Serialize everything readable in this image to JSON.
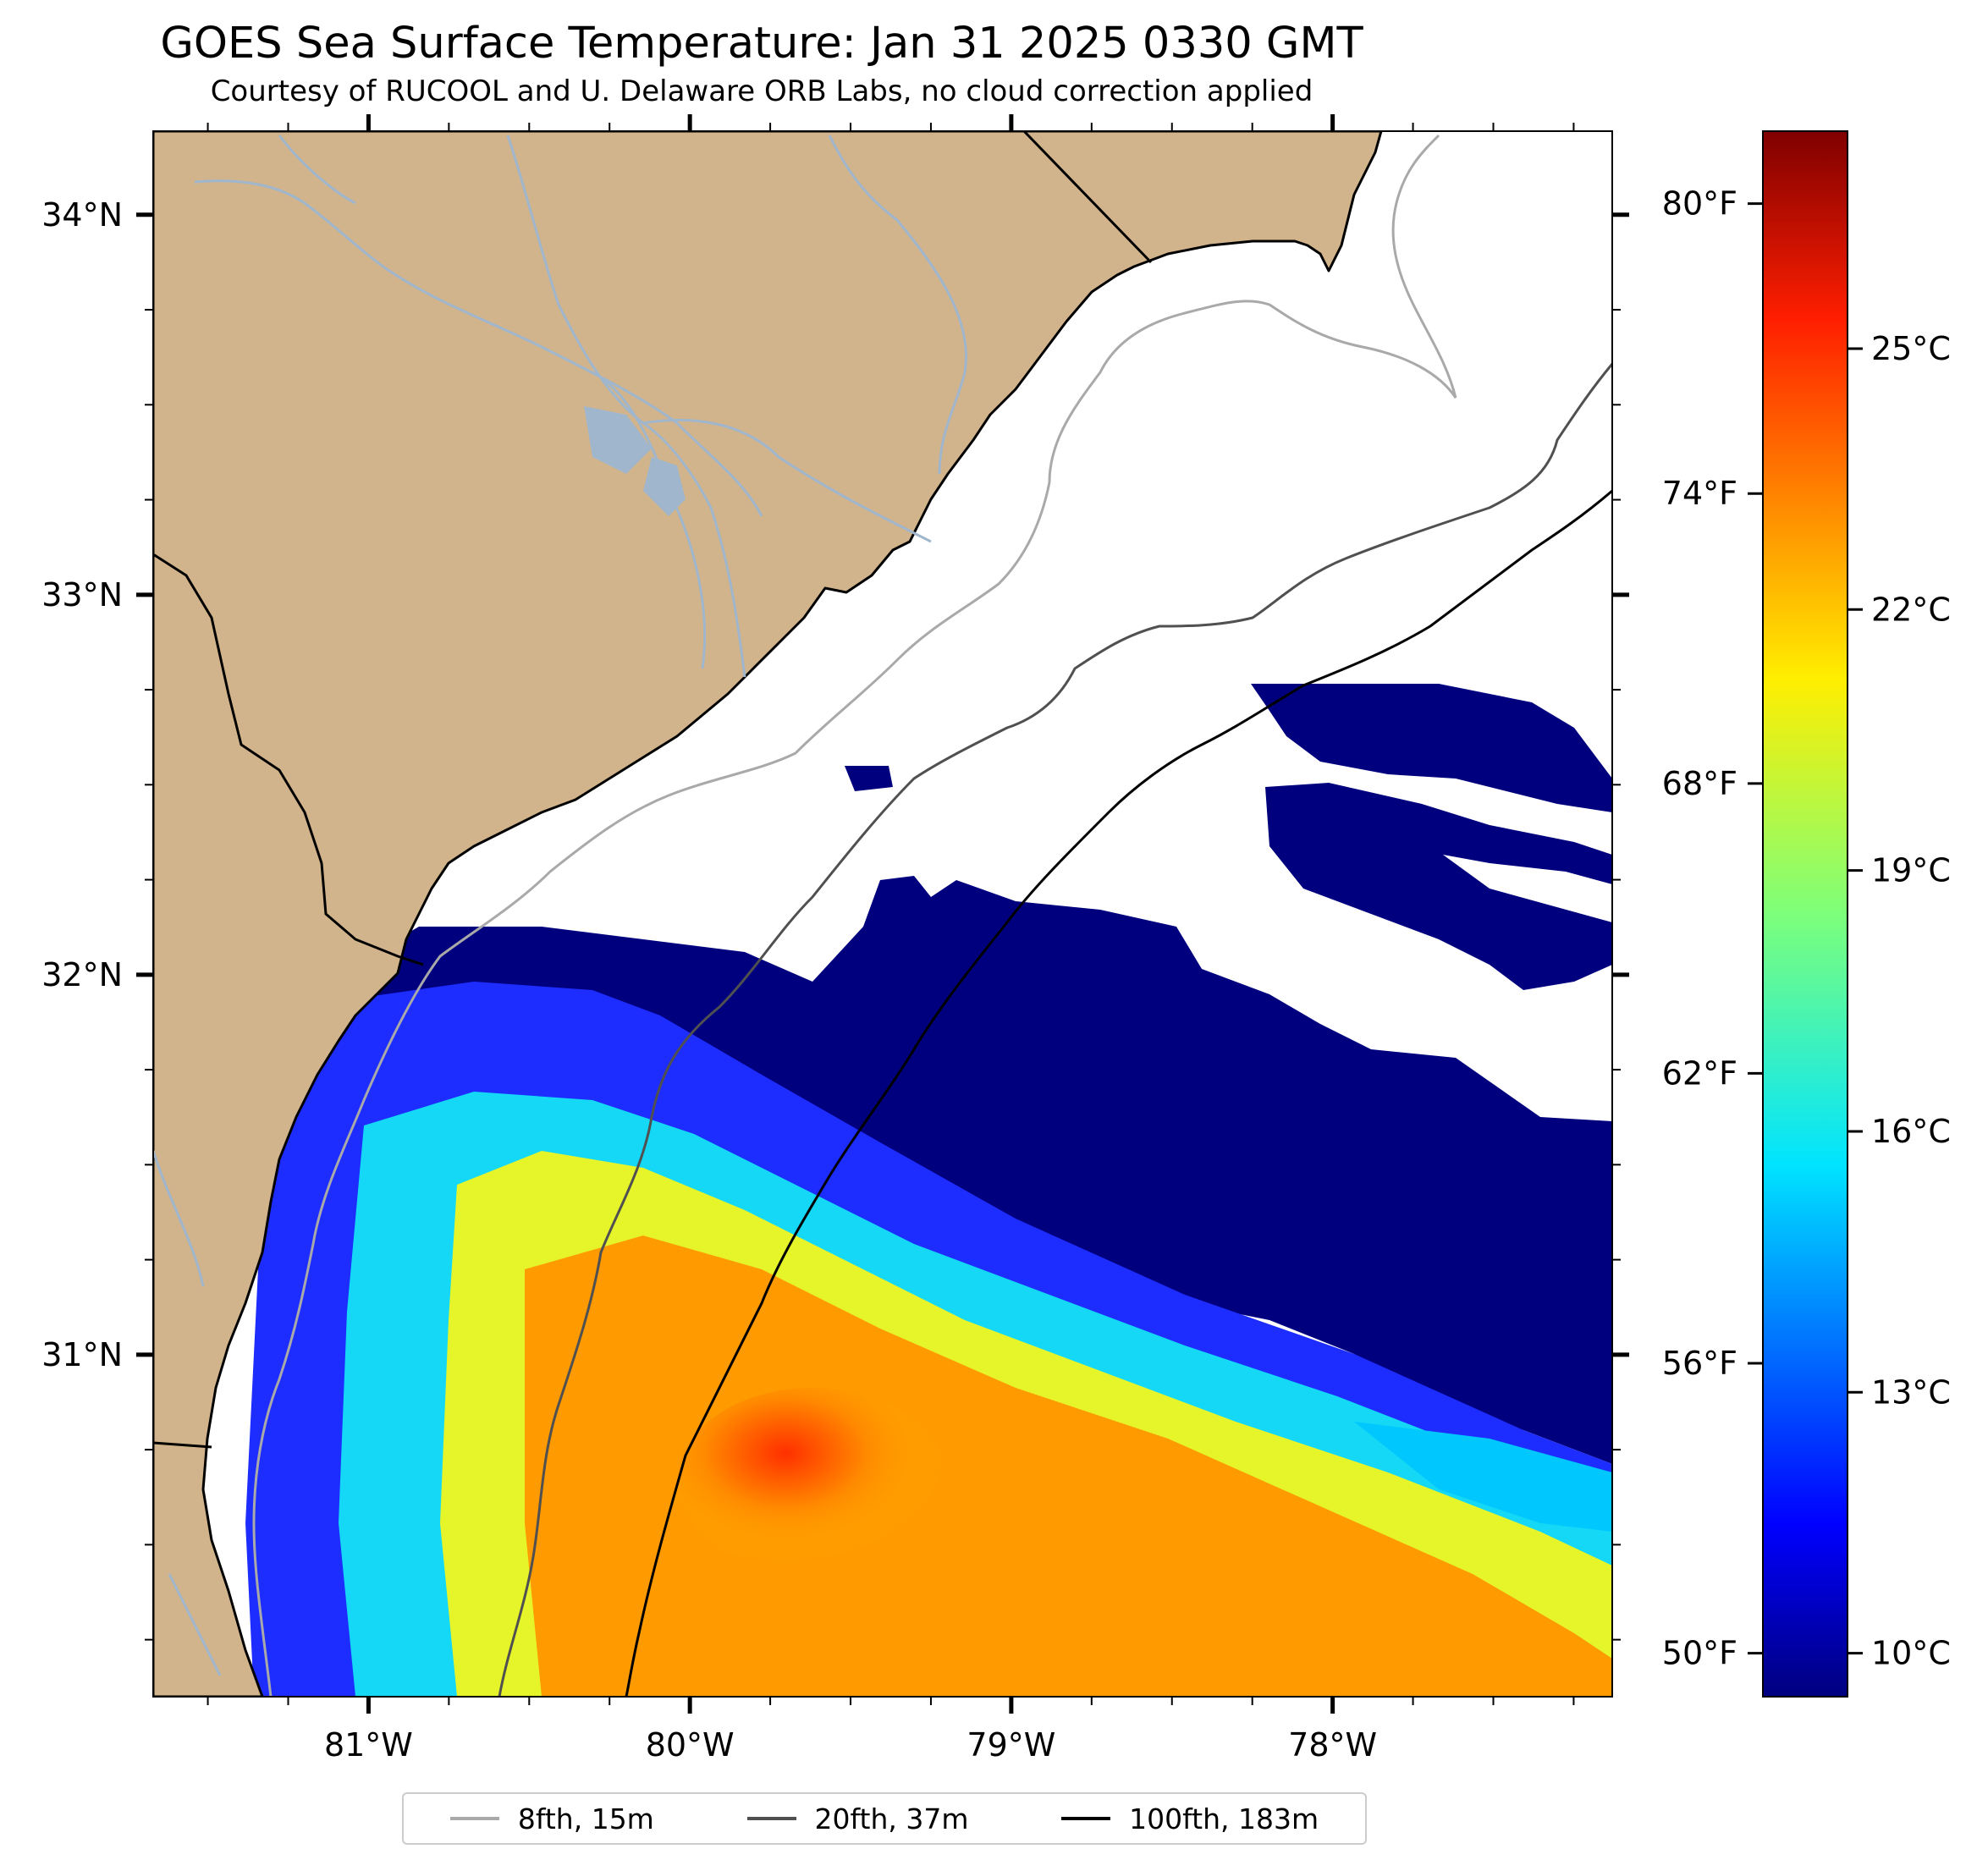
{
  "title": "GOES Sea Surface Temperature: Jan 31 2025 0330 GMT",
  "subtitle": "Courtesy of RUCOOL and U. Delaware ORB Labs, no cloud correction applied",
  "map": {
    "lon_range": [
      -81.67,
      -77.13
    ],
    "lat_range": [
      30.1,
      34.22
    ],
    "lon_ticks": [
      {
        "value": -81,
        "label": "81°W"
      },
      {
        "value": -80,
        "label": "80°W"
      },
      {
        "value": -79,
        "label": "79°W"
      },
      {
        "value": -78,
        "label": "78°W"
      }
    ],
    "lat_ticks": [
      {
        "value": 34,
        "label": "34°N"
      },
      {
        "value": 33,
        "label": "33°N"
      },
      {
        "value": 32,
        "label": "32°N"
      },
      {
        "value": 31,
        "label": "31°N"
      }
    ],
    "colors": {
      "land": "#d2b48c",
      "ocean_missing": "#ffffff",
      "rivers": "#9fb6cd",
      "coastline": "#000000"
    }
  },
  "colorbar": {
    "colormap": "jet",
    "range_celsius": [
      9.5,
      27.5
    ],
    "celsius_ticks": [
      {
        "value": 10,
        "label": "10°C"
      },
      {
        "value": 13,
        "label": "13°C"
      },
      {
        "value": 16,
        "label": "16°C"
      },
      {
        "value": 19,
        "label": "19°C"
      },
      {
        "value": 22,
        "label": "22°C"
      },
      {
        "value": 25,
        "label": "25°C"
      }
    ],
    "fahrenheit_ticks": [
      {
        "value": 50,
        "label": "50°F"
      },
      {
        "value": 56,
        "label": "56°F"
      },
      {
        "value": 62,
        "label": "62°F"
      },
      {
        "value": 68,
        "label": "68°F"
      },
      {
        "value": 74,
        "label": "74°F"
      },
      {
        "value": 80,
        "label": "80°F"
      }
    ]
  },
  "legend": {
    "entries": [
      {
        "label": "8fth, 15m",
        "color": "#a9a9a9"
      },
      {
        "label": "20fth, 37m",
        "color": "#505050"
      },
      {
        "label": "100fth, 183m",
        "color": "#000000"
      }
    ]
  }
}
